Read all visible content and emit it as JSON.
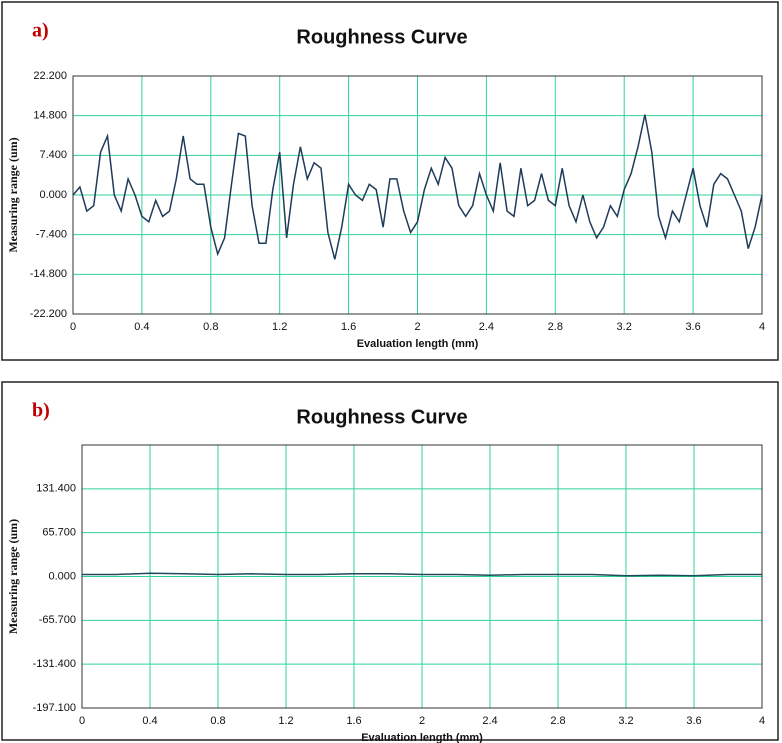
{
  "chart_data": [
    {
      "type": "line",
      "panel_label": "a)",
      "title": "Roughness Curve",
      "xlabel": "Evaluation length (mm)",
      "ylabel": "Measuring range (um)",
      "color": "#1f3b5a",
      "grid": true,
      "grid_color": "#2fd39a",
      "x": [
        0,
        0.04,
        0.08,
        0.12,
        0.16,
        0.2,
        0.24,
        0.28,
        0.32,
        0.36,
        0.4,
        0.44,
        0.48,
        0.52,
        0.56,
        0.6,
        0.64,
        0.68,
        0.72,
        0.76,
        0.8,
        0.84,
        0.88,
        0.92,
        0.96,
        1.0,
        1.04,
        1.08,
        1.12,
        1.16,
        1.2,
        1.24,
        1.28,
        1.32,
        1.36,
        1.4,
        1.44,
        1.48,
        1.52,
        1.56,
        1.6,
        1.64,
        1.68,
        1.72,
        1.76,
        1.8,
        1.84,
        1.88,
        1.92,
        1.96,
        2.0,
        2.04,
        2.08,
        2.12,
        2.16,
        2.2,
        2.24,
        2.28,
        2.32,
        2.36,
        2.4,
        2.44,
        2.48,
        2.52,
        2.56,
        2.6,
        2.64,
        2.68,
        2.72,
        2.76,
        2.8,
        2.84,
        2.88,
        2.92,
        2.96,
        3.0,
        3.04,
        3.08,
        3.12,
        3.16,
        3.2,
        3.24,
        3.28,
        3.32,
        3.36,
        3.4,
        3.44,
        3.48,
        3.52,
        3.56,
        3.6,
        3.64,
        3.68,
        3.72,
        3.76,
        3.8,
        3.84,
        3.88,
        3.92,
        3.96,
        4.0
      ],
      "values": [
        0,
        1.5,
        -3,
        -2,
        8,
        11,
        0,
        -3,
        3,
        0,
        -4,
        -5,
        -1,
        -4,
        -3,
        3,
        11,
        3,
        2,
        2,
        -6,
        -11,
        -8,
        2,
        11.5,
        11,
        -2,
        -9,
        -9,
        1,
        8,
        -8,
        2,
        9,
        3,
        6,
        5,
        -7,
        -12,
        -6,
        2,
        0,
        -1,
        2,
        1,
        -6,
        3,
        3,
        -3,
        -7,
        -5,
        1,
        5,
        2,
        7,
        5,
        -2,
        -4,
        -2,
        4,
        0,
        -3,
        6,
        -3,
        -4,
        5,
        -2,
        -1,
        4,
        -1,
        -2,
        5,
        -2,
        -5,
        0,
        -5,
        -8,
        -6,
        -2,
        -4,
        1,
        4,
        9,
        15,
        8,
        -4,
        -8,
        -3,
        -5,
        0,
        5,
        -2,
        -6,
        2,
        4,
        3,
        0,
        -3,
        -10,
        -6,
        0
      ],
      "xlim": [
        0,
        4
      ],
      "xticks": [
        0,
        0.4,
        0.8,
        1.2,
        1.6,
        2,
        2.4,
        2.8,
        3.2,
        3.6,
        4
      ],
      "ylim": [
        -22.2,
        22.2
      ],
      "yticks": [
        {
          "value": -22.2,
          "label": "-22.200"
        },
        {
          "value": -14.8,
          "label": "-14.800"
        },
        {
          "value": -7.4,
          "label": "-7.400"
        },
        {
          "value": 0,
          "label": "0.000"
        },
        {
          "value": 7.4,
          "label": "7.400"
        },
        {
          "value": 14.8,
          "label": "14.800"
        },
        {
          "value": 22.2,
          "label": "22.200"
        }
      ]
    },
    {
      "type": "line",
      "panel_label": "b)",
      "title": "Roughness Curve",
      "xlabel": "Evaluation length (mm)",
      "ylabel": "Measuring range (um)",
      "color": "#1f4a5a",
      "grid": true,
      "grid_color": "#2fd39a",
      "x": [
        0,
        0.2,
        0.4,
        0.6,
        0.8,
        1.0,
        1.2,
        1.4,
        1.6,
        1.8,
        2.0,
        2.2,
        2.4,
        2.6,
        2.8,
        3.0,
        3.2,
        3.4,
        3.6,
        3.8,
        4.0
      ],
      "values": [
        3,
        3,
        5,
        4,
        3,
        4,
        3,
        3,
        4,
        4,
        3,
        3,
        2,
        3,
        3,
        3,
        1,
        2,
        1,
        3,
        3
      ],
      "xlim": [
        0,
        4
      ],
      "xticks": [
        0,
        0.4,
        0.8,
        1.2,
        1.6,
        2,
        2.4,
        2.8,
        3.2,
        3.6,
        4
      ],
      "ylim": [
        -197.1,
        197.1
      ],
      "yticks": [
        {
          "value": -197.1,
          "label": "-197.100"
        },
        {
          "value": -131.4,
          "label": "-131.400"
        },
        {
          "value": -65.7,
          "label": "-65.700"
        },
        {
          "value": 0,
          "label": "0.000"
        },
        {
          "value": 65.7,
          "label": "65.700"
        },
        {
          "value": 131.4,
          "label": "131.400"
        }
      ]
    }
  ]
}
